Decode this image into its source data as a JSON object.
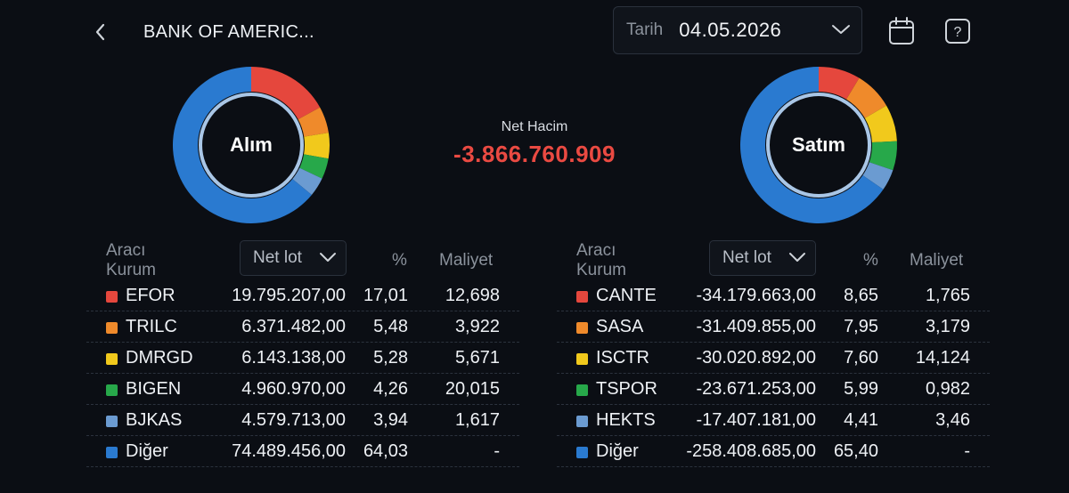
{
  "header": {
    "title": "BANK OF AMERIC...",
    "date_label": "Tarih",
    "date_value": "04.05.2026"
  },
  "net": {
    "label": "Net Hacim",
    "value": "-3.866.760.909"
  },
  "buy": {
    "title": "Alım",
    "columns": {
      "broker": "Aracı Kurum",
      "lot_select": "Net lot",
      "pct": "%",
      "cost": "Maliyet"
    },
    "rows": [
      {
        "name": "EFOR",
        "lot": "19.795.207,00",
        "pct": "17,01",
        "pct_value": 17.01,
        "cost": "12,698",
        "color": "#e5473d"
      },
      {
        "name": "TRILC",
        "lot": "6.371.482,00",
        "pct": "5,48",
        "pct_value": 5.48,
        "cost": "3,922",
        "color": "#ef8a2b"
      },
      {
        "name": "DMRGD",
        "lot": "6.143.138,00",
        "pct": "5,28",
        "pct_value": 5.28,
        "cost": "5,671",
        "color": "#f1c91c"
      },
      {
        "name": "BIGEN",
        "lot": "4.960.970,00",
        "pct": "4,26",
        "pct_value": 4.26,
        "cost": "20,015",
        "color": "#27a84a"
      },
      {
        "name": "BJKAS",
        "lot": "4.579.713,00",
        "pct": "3,94",
        "pct_value": 3.94,
        "cost": "1,617",
        "color": "#6b9bd1"
      },
      {
        "name": "Diğer",
        "lot": "74.489.456,00",
        "pct": "64,03",
        "pct_value": 64.03,
        "cost": "-",
        "color": "#2a7ad0"
      }
    ]
  },
  "sell": {
    "title": "Satım",
    "columns": {
      "broker": "Aracı Kurum",
      "lot_select": "Net lot",
      "pct": "%",
      "cost": "Maliyet"
    },
    "rows": [
      {
        "name": "CANTE",
        "lot": "-34.179.663,00",
        "pct": "8,65",
        "pct_value": 8.65,
        "cost": "1,765",
        "color": "#e5473d"
      },
      {
        "name": "SASA",
        "lot": "-31.409.855,00",
        "pct": "7,95",
        "pct_value": 7.95,
        "cost": "3,179",
        "color": "#ef8a2b"
      },
      {
        "name": "ISCTR",
        "lot": "-30.020.892,00",
        "pct": "7,60",
        "pct_value": 7.6,
        "cost": "14,124",
        "color": "#f1c91c"
      },
      {
        "name": "TSPOR",
        "lot": "-23.671.253,00",
        "pct": "5,99",
        "pct_value": 5.99,
        "cost": "0,982",
        "color": "#27a84a"
      },
      {
        "name": "HEKTS",
        "lot": "-17.407.181,00",
        "pct": "4,41",
        "pct_value": 4.41,
        "cost": "3,46",
        "color": "#6b9bd1"
      },
      {
        "name": "Diğer",
        "lot": "-258.408.685,00",
        "pct": "65,40",
        "pct_value": 65.4,
        "cost": "-",
        "color": "#2a7ad0"
      }
    ]
  },
  "icons": {
    "back": "chevron-left-icon",
    "dropdown": "chevron-down-icon",
    "calendar": "calendar-icon",
    "help": "help-icon"
  }
}
